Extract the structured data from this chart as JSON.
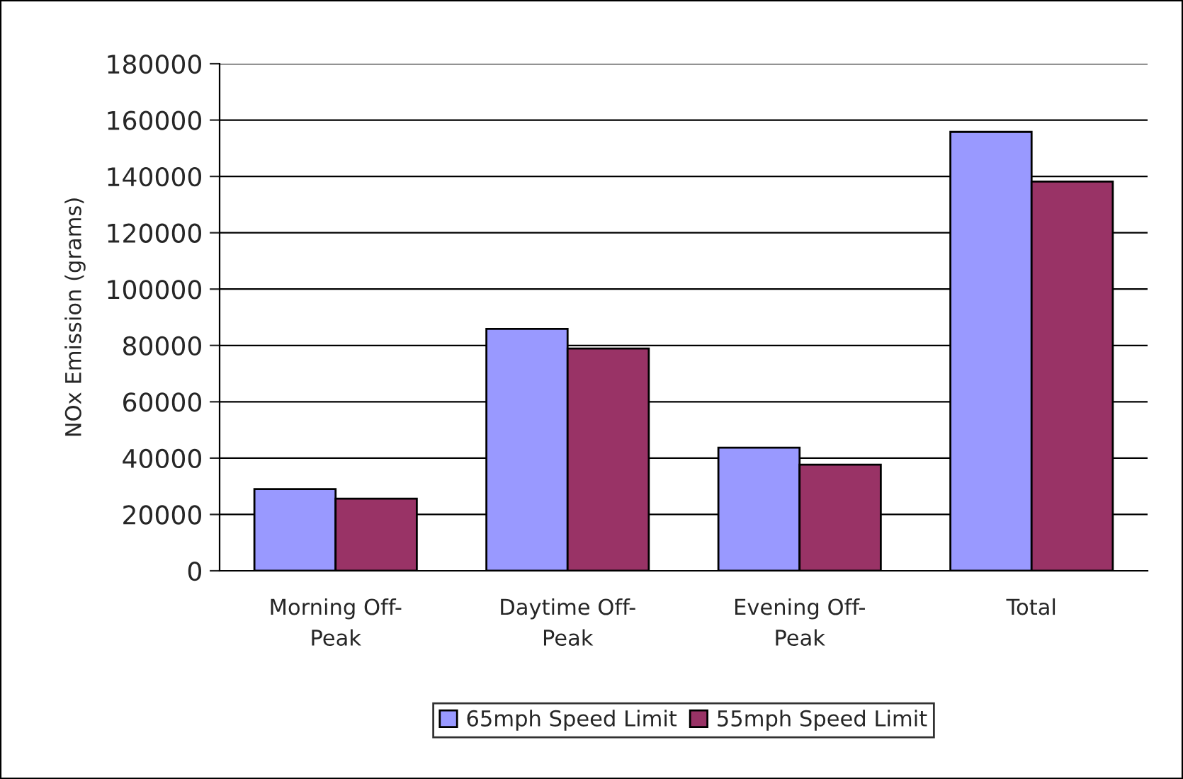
{
  "chart_data": {
    "type": "bar",
    "ylabel": "NOx Emission (grams)",
    "categories": [
      "Morning Off-\nPeak",
      "Daytime Off-\nPeak",
      "Evening Off-\nPeak",
      "Total"
    ],
    "series": [
      {
        "name": "65mph Speed Limit",
        "color": "#9999ff",
        "values": [
          29000,
          85900,
          43700,
          155800
        ]
      },
      {
        "name": "55mph Speed Limit",
        "color": "#993366",
        "values": [
          25600,
          78900,
          37700,
          138200
        ]
      }
    ],
    "ylim": [
      0,
      180000
    ],
    "yticks": [
      0,
      20000,
      40000,
      60000,
      80000,
      100000,
      120000,
      140000,
      160000,
      180000
    ],
    "grid": "y",
    "legend": "bottom"
  }
}
